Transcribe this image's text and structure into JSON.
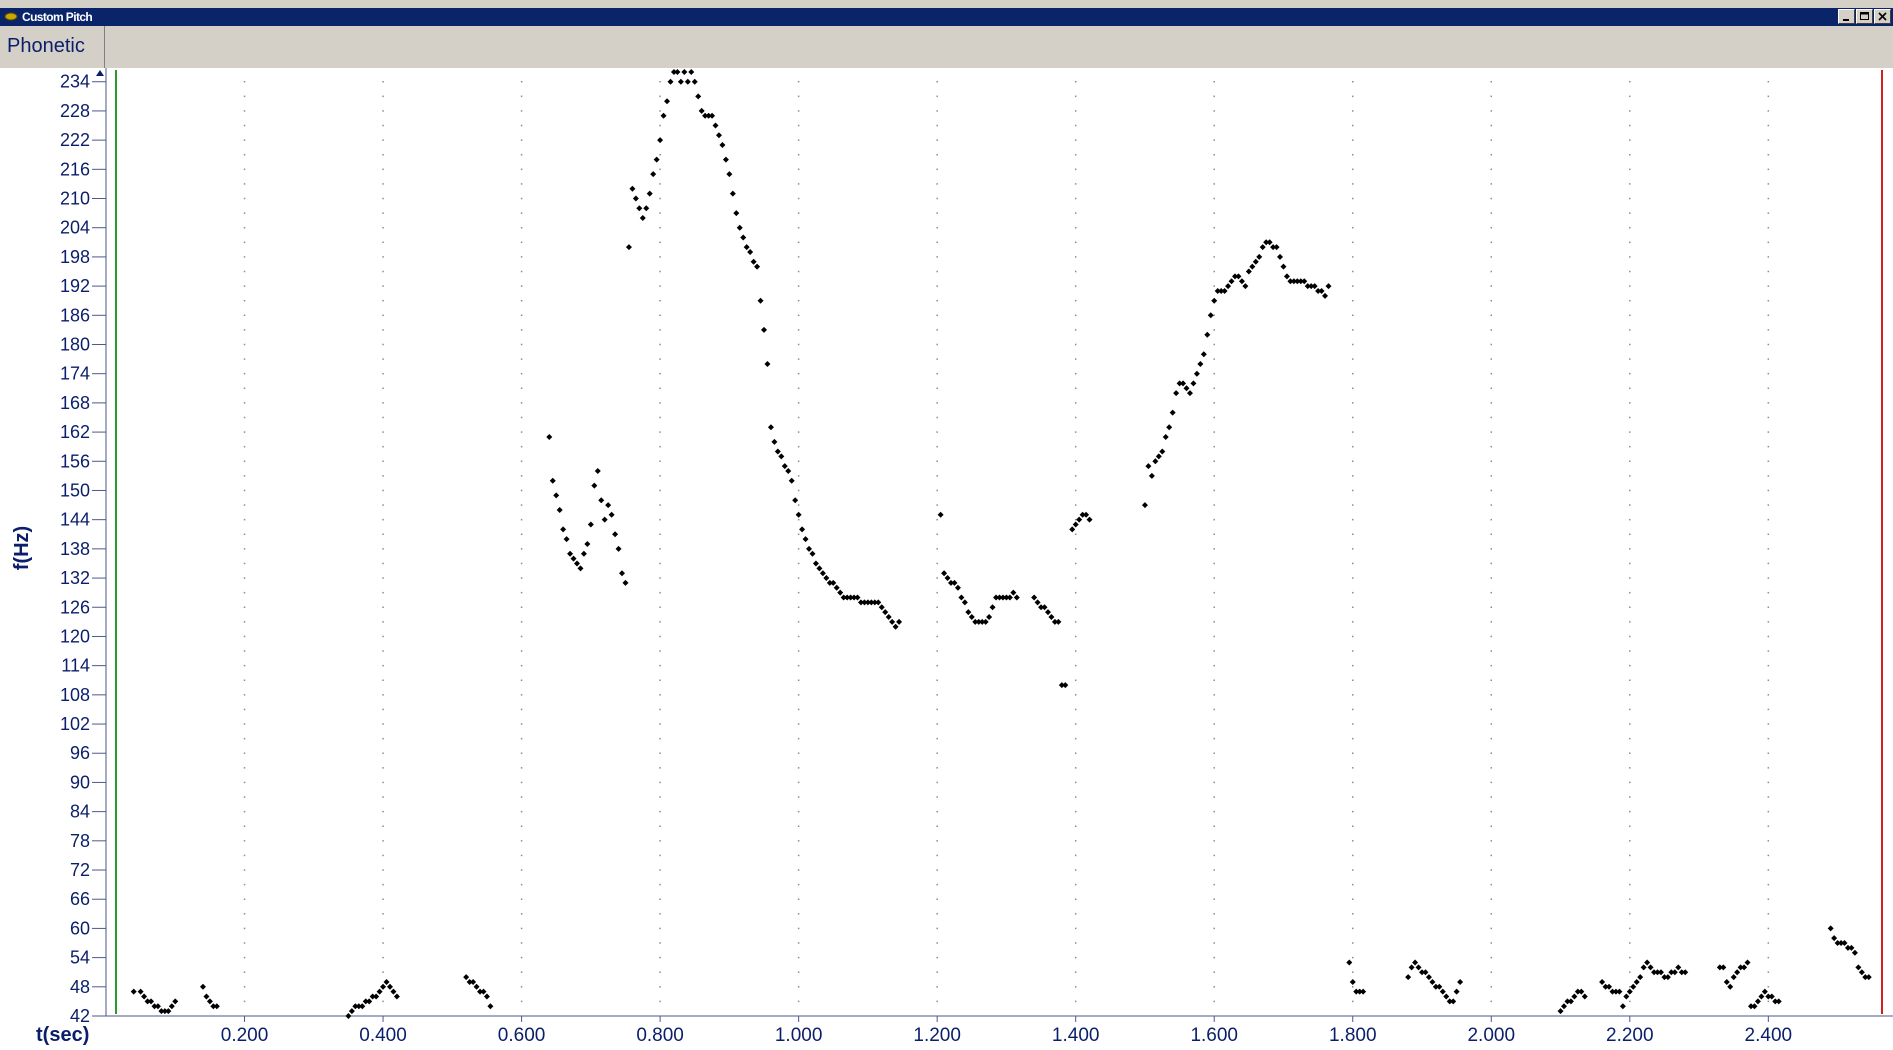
{
  "window": {
    "title": "Custom Pitch",
    "buttons": [
      "minimize",
      "maximize",
      "close"
    ]
  },
  "tabs": [
    {
      "label": "Phonetic"
    }
  ],
  "chart_data": {
    "type": "scatter",
    "title": "",
    "xlabel": "t(sec)",
    "ylabel": "f(Hz)",
    "xlim": [
      0,
      2.58
    ],
    "ylim": [
      42,
      236
    ],
    "x_ticks": [
      "0.200",
      "0.400",
      "0.600",
      "0.800",
      "1.000",
      "1.200",
      "1.400",
      "1.600",
      "1.800",
      "2.000",
      "2.200",
      "2.400"
    ],
    "y_ticks": [
      "42",
      "48",
      "54",
      "60",
      "66",
      "72",
      "78",
      "84",
      "90",
      "96",
      "102",
      "108",
      "114",
      "120",
      "126",
      "132",
      "138",
      "144",
      "150",
      "156",
      "162",
      "168",
      "174",
      "180",
      "186",
      "192",
      "198",
      "204",
      "210",
      "216",
      "222",
      "228",
      "234"
    ],
    "grid": "dotted",
    "marker_color": "#000000",
    "series": [
      {
        "x": [
          0.04,
          0.05,
          0.055,
          0.06,
          0.065,
          0.07,
          0.075,
          0.08,
          0.085,
          0.09,
          0.095,
          0.1,
          0.14,
          0.145,
          0.15,
          0.155,
          0.16,
          0.35,
          0.355,
          0.36,
          0.365,
          0.37,
          0.375,
          0.38,
          0.385,
          0.39,
          0.395,
          0.4,
          0.405,
          0.41,
          0.415,
          0.42,
          0.52,
          0.525,
          0.53,
          0.535,
          0.54,
          0.545,
          0.55,
          0.555
        ],
        "y": [
          47,
          47,
          46,
          45,
          45,
          44,
          44,
          43,
          43,
          43,
          44,
          45,
          48,
          46,
          45,
          44,
          44,
          42,
          43,
          44,
          44,
          44,
          45,
          45,
          46,
          46,
          47,
          48,
          49,
          48,
          47,
          46,
          50,
          49,
          49,
          48,
          47,
          47,
          46,
          44
        ]
      },
      {
        "x": [
          0.64,
          0.645,
          0.65,
          0.655,
          0.66,
          0.665,
          0.67,
          0.675,
          0.68,
          0.685,
          0.69,
          0.695,
          0.7,
          0.705,
          0.71,
          0.715,
          0.72,
          0.725,
          0.73,
          0.735,
          0.74,
          0.745,
          0.75
        ],
        "y": [
          161,
          152,
          149,
          146,
          142,
          140,
          137,
          136,
          135,
          134,
          137,
          139,
          143,
          151,
          154,
          148,
          144,
          147,
          145,
          141,
          138,
          133,
          131
        ]
      },
      {
        "x": [
          0.755,
          0.76,
          0.765,
          0.77,
          0.775,
          0.78,
          0.785,
          0.79,
          0.795,
          0.8,
          0.805,
          0.81,
          0.815,
          0.82,
          0.825,
          0.83,
          0.835,
          0.84,
          0.845,
          0.85,
          0.855,
          0.86,
          0.865,
          0.87,
          0.875,
          0.88,
          0.885,
          0.89,
          0.895,
          0.9,
          0.905,
          0.91,
          0.915,
          0.92,
          0.925,
          0.93,
          0.935,
          0.94,
          0.945,
          0.95,
          0.955,
          0.96,
          0.965,
          0.97,
          0.975,
          0.98,
          0.985,
          0.99,
          0.995,
          1.0,
          1.005,
          1.01,
          1.015,
          1.02,
          1.025,
          1.03,
          1.035,
          1.04,
          1.045,
          1.05,
          1.055,
          1.06,
          1.065,
          1.07,
          1.075,
          1.08,
          1.085,
          1.09,
          1.095,
          1.1,
          1.105,
          1.11,
          1.115,
          1.12,
          1.125,
          1.13,
          1.135,
          1.14,
          1.145
        ],
        "y": [
          200,
          212,
          210,
          208,
          206,
          208,
          211,
          215,
          218,
          222,
          227,
          230,
          234,
          236,
          236,
          234,
          236,
          234,
          236,
          234,
          231,
          228,
          227,
          227,
          227,
          225,
          223,
          221,
          218,
          215,
          211,
          207,
          204,
          202,
          200,
          199,
          197,
          196,
          189,
          183,
          176,
          163,
          160,
          158,
          157,
          155,
          154,
          152,
          148,
          145,
          142,
          140,
          138,
          137,
          135,
          134,
          133,
          132,
          131,
          131,
          130,
          129,
          128,
          128,
          128,
          128,
          128,
          127,
          127,
          127,
          127,
          127,
          127,
          126,
          125,
          124,
          123,
          122,
          123
        ]
      },
      {
        "x": [
          1.205,
          1.21,
          1.215,
          1.22,
          1.225,
          1.23,
          1.235,
          1.24,
          1.245,
          1.25,
          1.255,
          1.26,
          1.265,
          1.27,
          1.275,
          1.28,
          1.285,
          1.29,
          1.295,
          1.3,
          1.305,
          1.31,
          1.315,
          1.34,
          1.345,
          1.35,
          1.355,
          1.36,
          1.365,
          1.37,
          1.375,
          1.38,
          1.385,
          1.395,
          1.4,
          1.405,
          1.41,
          1.415,
          1.42
        ],
        "y": [
          145,
          133,
          132,
          131,
          131,
          130,
          128,
          127,
          125,
          124,
          123,
          123,
          123,
          123,
          124,
          126,
          128,
          128,
          128,
          128,
          128,
          129,
          128,
          128,
          127,
          126,
          126,
          125,
          124,
          123,
          123,
          110,
          110,
          142,
          143,
          144,
          145,
          145,
          144
        ]
      },
      {
        "x": [
          1.5,
          1.505,
          1.51,
          1.515,
          1.52,
          1.525,
          1.53,
          1.535,
          1.54,
          1.545,
          1.55,
          1.555,
          1.56,
          1.565,
          1.57,
          1.575,
          1.58,
          1.585,
          1.59,
          1.595,
          1.6,
          1.605,
          1.61,
          1.615,
          1.62,
          1.625,
          1.63,
          1.635,
          1.64,
          1.645,
          1.65,
          1.655,
          1.66,
          1.665,
          1.67,
          1.675,
          1.68,
          1.685,
          1.69,
          1.695,
          1.7,
          1.705,
          1.71,
          1.715,
          1.72,
          1.725,
          1.73,
          1.735,
          1.74,
          1.745,
          1.75,
          1.755,
          1.76,
          1.765
        ],
        "y": [
          147,
          155,
          153,
          156,
          157,
          158,
          161,
          163,
          166,
          170,
          172,
          172,
          171,
          170,
          172,
          174,
          176,
          178,
          182,
          186,
          189,
          191,
          191,
          191,
          192,
          193,
          194,
          194,
          193,
          192,
          195,
          196,
          197,
          198,
          200,
          201,
          201,
          200,
          200,
          198,
          196,
          194,
          193,
          193,
          193,
          193,
          193,
          192,
          192,
          192,
          191,
          191,
          190,
          192
        ]
      },
      {
        "x": [
          1.795,
          1.8,
          1.805,
          1.81,
          1.815,
          1.88,
          1.885,
          1.89,
          1.895,
          1.9,
          1.905,
          1.91,
          1.915,
          1.92,
          1.925,
          1.93,
          1.935,
          1.94,
          1.945,
          1.95,
          1.955,
          2.1,
          2.105,
          2.11,
          2.115,
          2.12,
          2.125,
          2.13,
          2.135,
          2.16,
          2.165,
          2.17,
          2.175,
          2.18,
          2.185,
          2.19,
          2.195,
          2.2,
          2.205,
          2.21,
          2.215,
          2.22,
          2.225,
          2.23,
          2.235,
          2.24,
          2.245,
          2.25,
          2.255,
          2.26,
          2.265,
          2.27,
          2.275,
          2.28,
          2.33,
          2.335,
          2.34,
          2.345,
          2.35,
          2.355,
          2.36,
          2.365,
          2.37,
          2.375,
          2.38,
          2.385,
          2.39,
          2.395,
          2.4,
          2.405,
          2.41,
          2.415,
          2.49,
          2.495,
          2.5,
          2.505,
          2.51,
          2.515,
          2.52,
          2.525,
          2.53,
          2.535,
          2.54,
          2.545
        ],
        "y": [
          53,
          49,
          47,
          47,
          47,
          50,
          52,
          53,
          52,
          51,
          51,
          50,
          49,
          48,
          48,
          47,
          46,
          45,
          45,
          47,
          49,
          43,
          44,
          45,
          45,
          46,
          47,
          47,
          46,
          49,
          48,
          48,
          47,
          47,
          47,
          44,
          46,
          47,
          48,
          49,
          50,
          52,
          53,
          52,
          51,
          51,
          51,
          50,
          50,
          51,
          51,
          52,
          51,
          51,
          52,
          52,
          49,
          48,
          50,
          51,
          52,
          52,
          53,
          44,
          44,
          45,
          46,
          47,
          46,
          46,
          45,
          45,
          60,
          58,
          57,
          57,
          57,
          56,
          56,
          55,
          52,
          51,
          50,
          50
        ]
      }
    ]
  }
}
